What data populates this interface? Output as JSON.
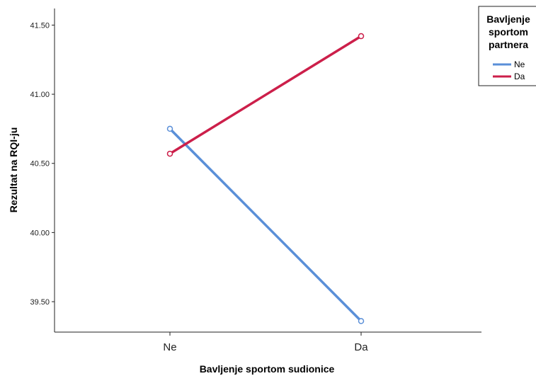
{
  "chart_data": {
    "type": "line",
    "categories": [
      "Ne",
      "Da"
    ],
    "xlabel": "Bavljenje sportom sudionice",
    "ylabel": "Rezultat na RQI-ju",
    "ylim": [
      39.28,
      41.62
    ],
    "yticks": [
      39.5,
      40.0,
      40.5,
      41.0,
      41.5
    ],
    "ytick_labels": [
      "39.50",
      "40.00",
      "40.50",
      "41.00",
      "41.50"
    ],
    "grid": false,
    "legend": {
      "title_lines": [
        "Bavljenje",
        "sportom",
        "partnera"
      ],
      "placement": "top-right"
    },
    "series": [
      {
        "name": "Ne",
        "color": "#5a8fd8",
        "values": [
          40.75,
          39.36
        ]
      },
      {
        "name": "Da",
        "color": "#cc1f4a",
        "values": [
          40.57,
          41.42
        ]
      }
    ]
  }
}
